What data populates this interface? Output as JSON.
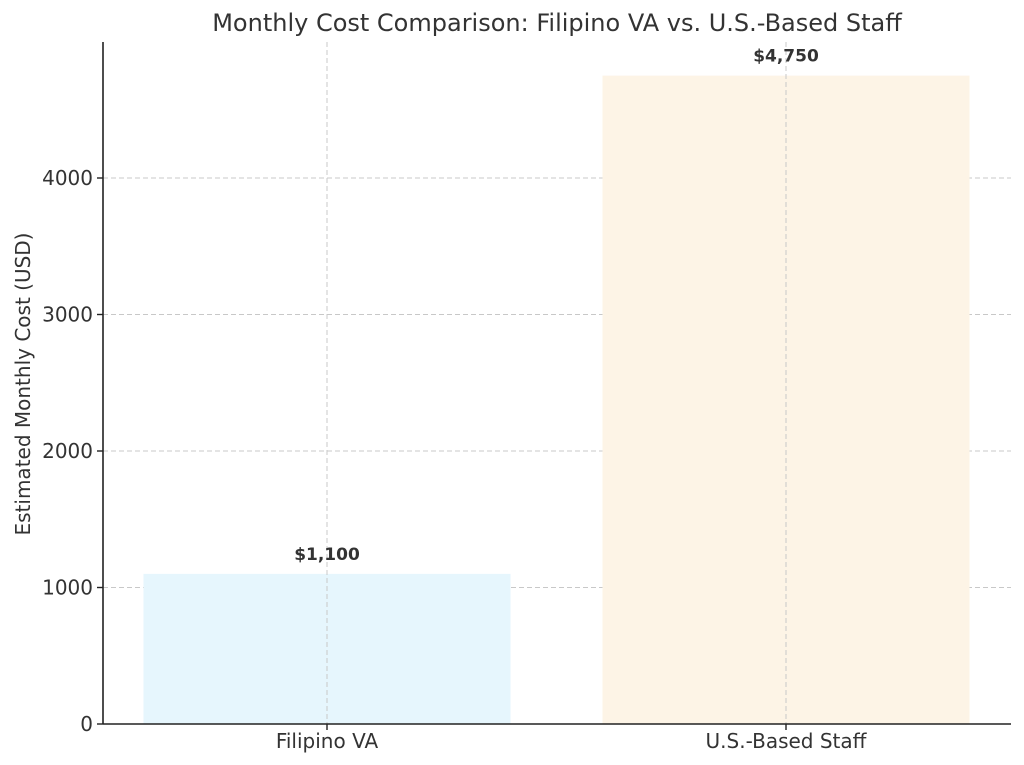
{
  "chart_data": {
    "type": "bar",
    "title": "Monthly Cost Comparison: Filipino VA vs. U.S.-Based Staff",
    "xlabel": "",
    "ylabel": "Estimated Monthly Cost (USD)",
    "categories": [
      "Filipino VA",
      "U.S.-Based Staff"
    ],
    "values": [
      1100,
      4750
    ],
    "value_labels": [
      "$1,100",
      "$4,750"
    ],
    "colors": [
      "#e6f6fd",
      "#fdf4e6"
    ],
    "ylim": [
      0,
      5000
    ],
    "yticks": [
      0,
      1000,
      2000,
      3000,
      4000
    ],
    "ytick_labels": [
      "0",
      "1000",
      "2000",
      "3000",
      "4000"
    ],
    "grid": true,
    "legend": "none"
  }
}
